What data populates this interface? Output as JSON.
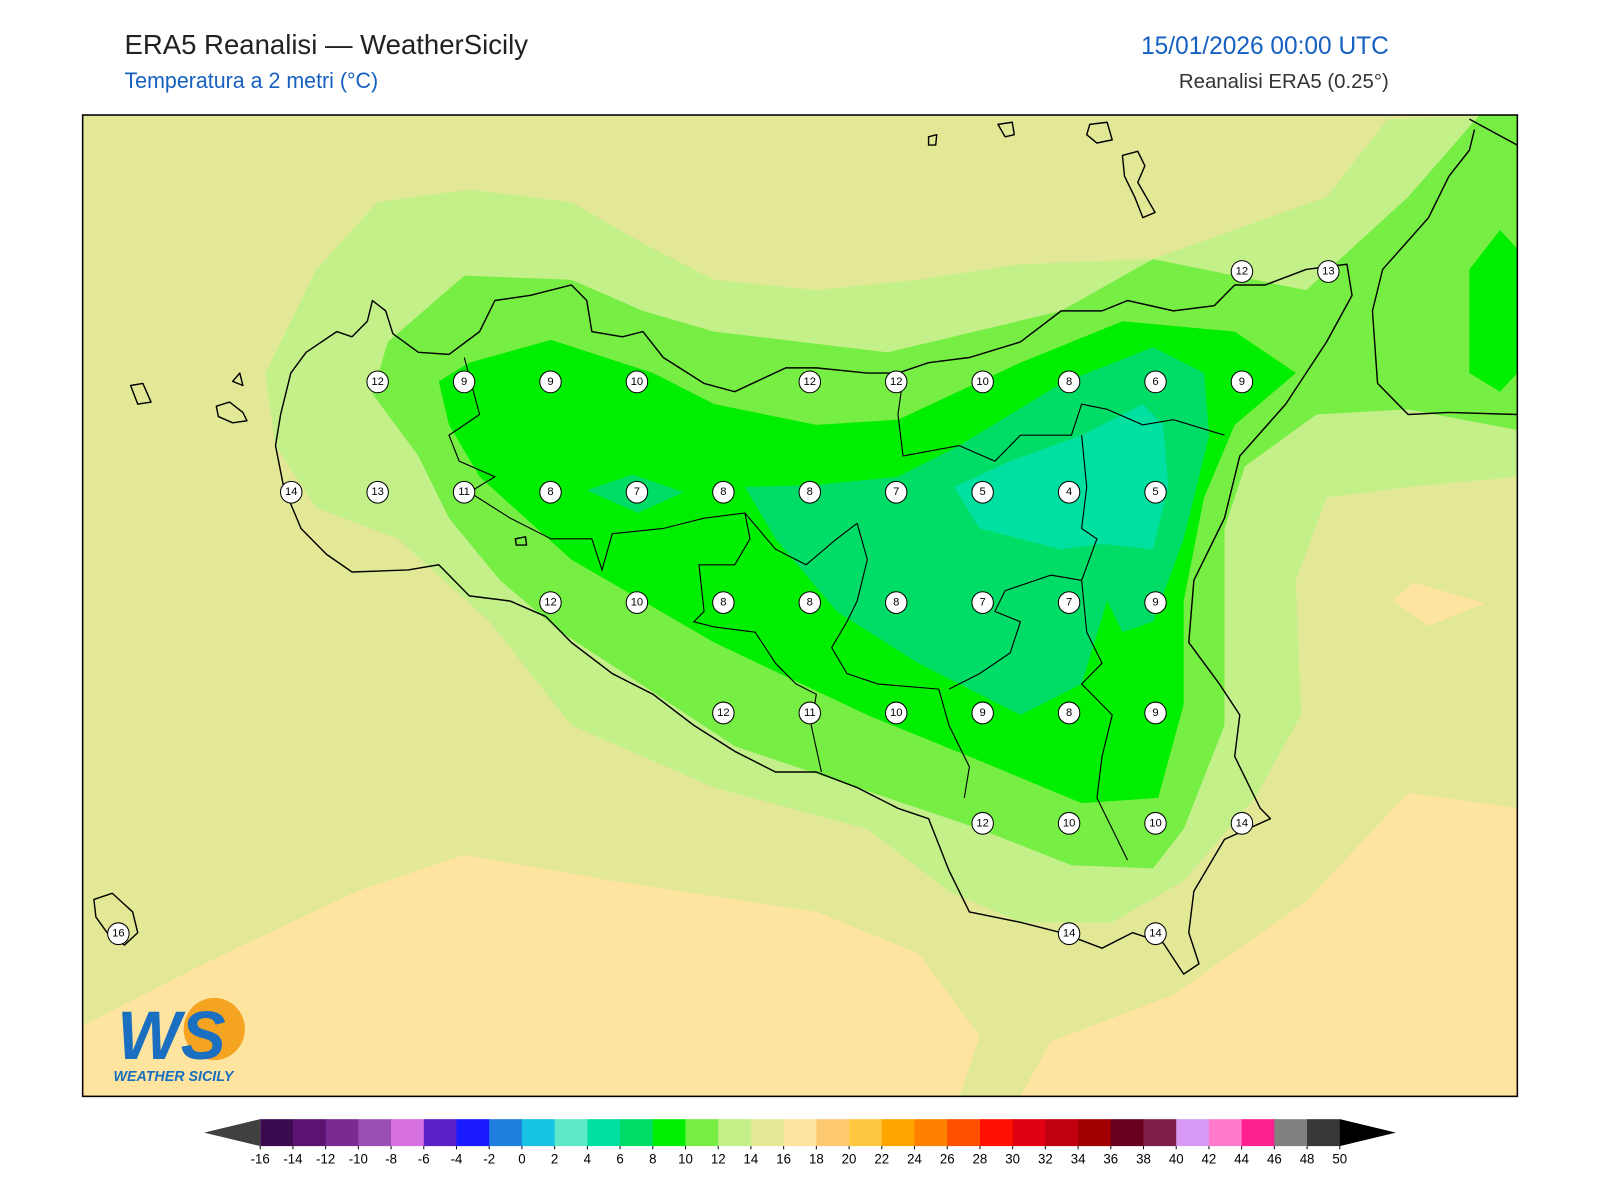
{
  "header": {
    "title": "ERA5 Reanalisi — WeatherSicily",
    "subtitle": "Temperatura a 2 metri (°C)",
    "datetime": "15/01/2026 00:00 UTC",
    "source": "Reanalisi ERA5 (0.25°)"
  },
  "stations": {
    "rows": [
      [
        null,
        null,
        null,
        null,
        null,
        null,
        null,
        null,
        null,
        null,
        null,
        null,
        null,
        12,
        13
      ],
      [
        null,
        null,
        null,
        12,
        9,
        9,
        10,
        null,
        12,
        12,
        10,
        8,
        6,
        9,
        null
      ],
      [
        null,
        null,
        14,
        13,
        11,
        8,
        7,
        8,
        8,
        7,
        5,
        4,
        5,
        null,
        null
      ],
      [
        null,
        null,
        null,
        null,
        null,
        12,
        10,
        8,
        8,
        8,
        7,
        7,
        9,
        null,
        null
      ],
      [
        null,
        null,
        null,
        null,
        null,
        null,
        null,
        12,
        11,
        10,
        9,
        8,
        9,
        null,
        null
      ],
      [
        null,
        null,
        null,
        null,
        null,
        null,
        null,
        null,
        null,
        null,
        12,
        10,
        10,
        14,
        null
      ],
      [
        16,
        null,
        null,
        null,
        null,
        null,
        null,
        null,
        null,
        null,
        null,
        14,
        14,
        null,
        null
      ]
    ]
  },
  "colorbar": {
    "ticks": [
      -16,
      -14,
      -12,
      -10,
      -8,
      -6,
      -4,
      -2,
      0,
      2,
      4,
      6,
      8,
      10,
      12,
      14,
      16,
      18,
      20,
      22,
      24,
      26,
      28,
      30,
      32,
      34,
      36,
      38,
      40,
      42,
      44,
      46,
      48,
      50
    ],
    "colors": [
      "#3b0a4f",
      "#5c1270",
      "#7a2a93",
      "#9b4fb6",
      "#d66fe0",
      "#5a20c8",
      "#1a1aff",
      "#1f7fdd",
      "#17c3e3",
      "#5de8c8",
      "#00e0a0",
      "#00dd66",
      "#00ee00",
      "#77ee44",
      "#c4f08a",
      "#e2e896",
      "#ffe4a0",
      "#fcc870",
      "#ffc840",
      "#ffa500",
      "#ff8000",
      "#ff5000",
      "#ff1000",
      "#e00010",
      "#c00010",
      "#a00000",
      "#6a0020",
      "#80204a",
      "#d79af5",
      "#ff7acc",
      "#ff2090",
      "#808080",
      "#383838"
    ],
    "under_color": "#404040",
    "over_color": "#000000"
  },
  "logo": {
    "text": "WS",
    "caption": "WEATHER SICILY"
  }
}
